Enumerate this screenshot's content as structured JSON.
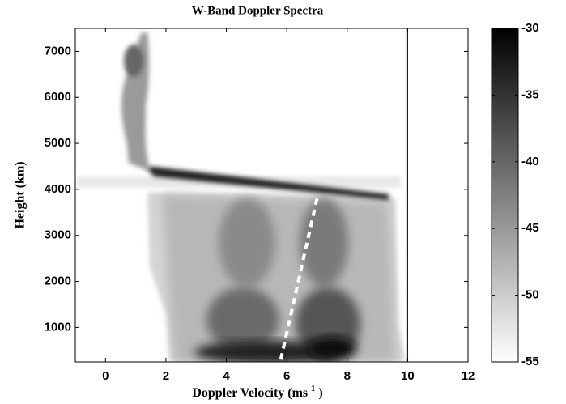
{
  "chart_data": {
    "type": "heatmap",
    "title": "W-Band Doppler Spectra",
    "xlabel": {
      "text": "Doppler Velocity (ms",
      "sup": "-1",
      "end": " )"
    },
    "ylabel": "Height (km)",
    "xlim": [
      -1,
      12
    ],
    "ylim": [
      250,
      7500
    ],
    "xticks": [
      0,
      2,
      4,
      6,
      8,
      10,
      12
    ],
    "yticks": [
      1000,
      2000,
      3000,
      4000,
      5000,
      6000,
      7000
    ],
    "vline": 10,
    "overlay": {
      "type": "line",
      "x": [
        5.8,
        7.0
      ],
      "values": [
        300,
        3800
      ],
      "color": "#ffffff",
      "dashed": true
    },
    "colorbar": {
      "clim": [
        -55,
        -30
      ],
      "ticks": [
        -30,
        -35,
        -40,
        -45,
        -50,
        -55
      ],
      "colors": [
        "#ffffff",
        "#000000"
      ]
    }
  }
}
